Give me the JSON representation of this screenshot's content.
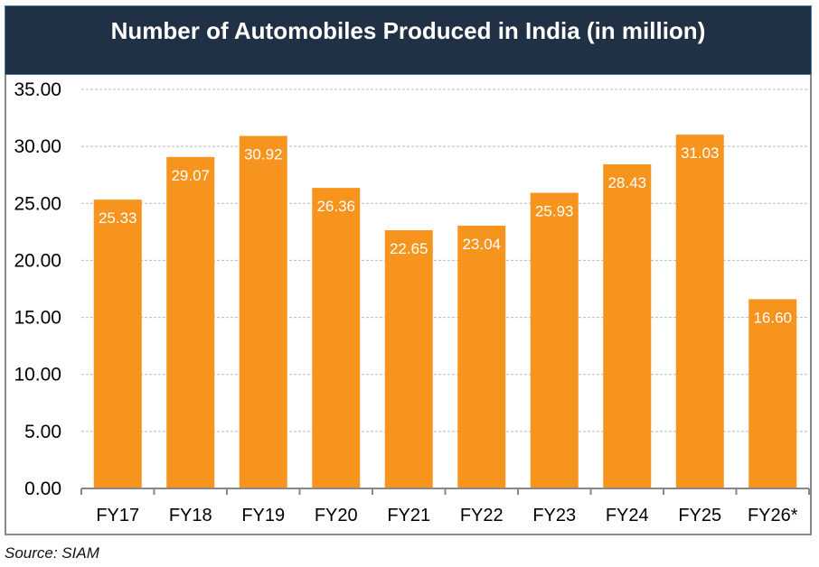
{
  "chart_data": {
    "type": "bar",
    "title": "Number of Automobiles Produced in India (in million)",
    "categories": [
      "FY17",
      "FY18",
      "FY19",
      "FY20",
      "FY21",
      "FY22",
      "FY23",
      "FY24",
      "FY25",
      "FY26*"
    ],
    "values": [
      25.33,
      29.07,
      30.92,
      26.36,
      22.65,
      23.04,
      25.93,
      28.43,
      31.03,
      16.6
    ],
    "data_labels": [
      "25.33",
      "29.07",
      "30.92",
      "26.36",
      "22.65",
      "23.04",
      "25.93",
      "28.43",
      "31.03",
      "16.60"
    ],
    "ylim": [
      0,
      35
    ],
    "yticks": [
      "0.00",
      "5.00",
      "10.00",
      "15.00",
      "20.00",
      "25.00",
      "30.00",
      "35.00"
    ],
    "grid": true,
    "bar_color": "#f7941d",
    "header_color": "#203045",
    "source": "Source: SIAM"
  }
}
